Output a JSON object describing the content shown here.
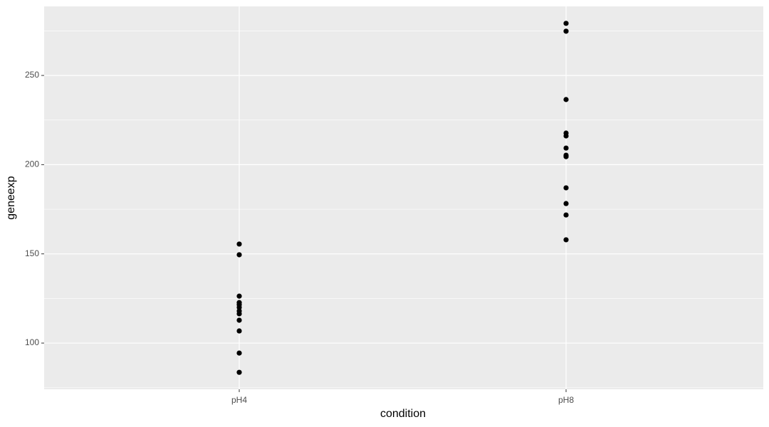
{
  "chart_data": {
    "type": "scatter",
    "x_label": "condition",
    "y_label": "geneexp",
    "categories": [
      "pH4",
      "pH8"
    ],
    "values": [
      [
        155.5,
        149.5,
        126.3,
        122.7,
        121.5,
        120.0,
        118.0,
        116.4,
        112.8,
        106.8,
        94.4,
        83.6
      ],
      [
        279.2,
        274.8,
        236.5,
        217.7,
        216.1,
        209.3,
        205.3,
        204.5,
        187.0,
        178.2,
        171.8,
        157.9
      ]
    ],
    "color": "#000000",
    "ylim": [
      74.1,
      288.7
    ],
    "yticks": [
      100,
      150,
      200,
      250
    ],
    "y_minor_ticks": [
      75,
      125,
      175,
      225,
      275
    ],
    "grid": true
  }
}
